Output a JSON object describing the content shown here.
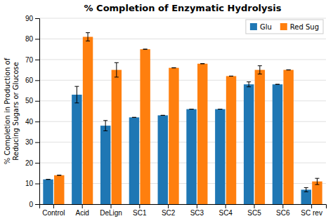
{
  "chart_data": {
    "type": "bar",
    "title": "% Completion of Enzymatic Hydrolysis",
    "ylabel": "% Completion in Production of\nReducing Sugars or Glucose",
    "categories": [
      "Control",
      "Acid",
      "DeLign",
      "SC1",
      "SC2",
      "SC3",
      "SC4",
      "SC5",
      "SC6",
      "SC rev"
    ],
    "series": [
      {
        "name": "Glu",
        "values": [
          12,
          53,
          38,
          42,
          43,
          46,
          46,
          58,
          58,
          7
        ],
        "errors": [
          0,
          4,
          2.5,
          0,
          0,
          0,
          0,
          1.2,
          0,
          1.0
        ]
      },
      {
        "name": "Red Sug",
        "values": [
          14,
          81,
          65,
          75,
          66,
          68,
          62,
          65,
          65,
          11
        ],
        "errors": [
          0,
          2.0,
          3.5,
          0,
          0,
          0,
          0,
          2.0,
          0,
          1.5
        ]
      }
    ],
    "ylim": [
      0,
      90
    ],
    "yticks": [
      0,
      10,
      20,
      30,
      40,
      50,
      60,
      70,
      80,
      90
    ],
    "grid": true,
    "legend": "upper right"
  }
}
